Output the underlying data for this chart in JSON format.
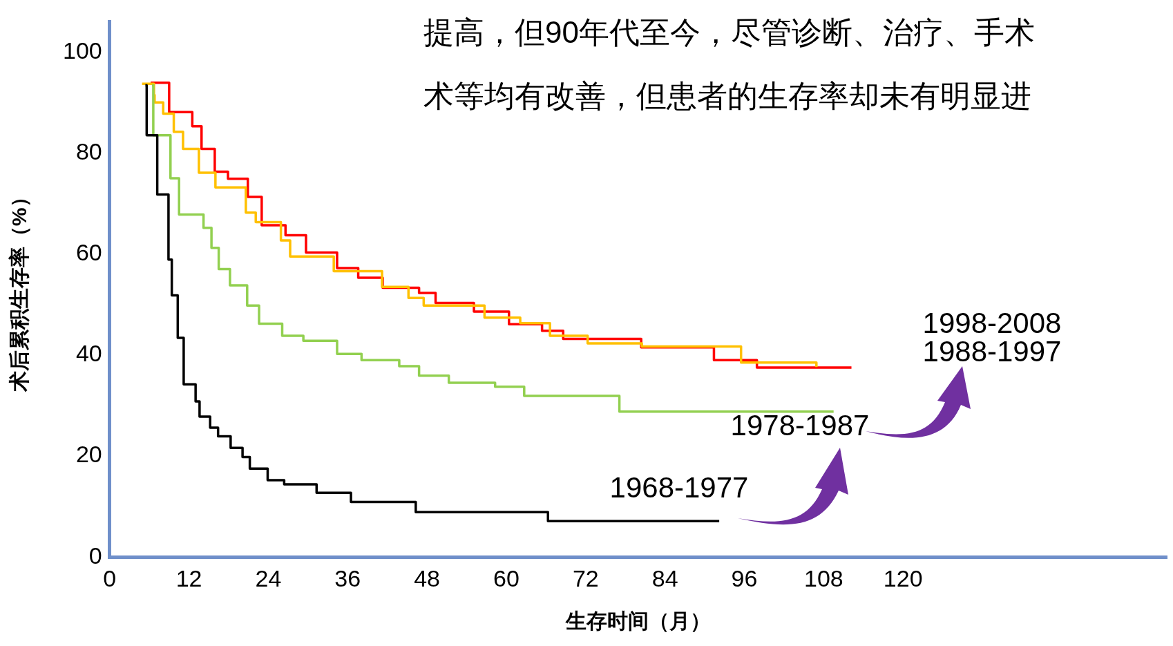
{
  "chart_data": {
    "type": "step",
    "xlabel": "生存时间（月）",
    "ylabel": "术后累积生存率（%）",
    "xlim": [
      0,
      160
    ],
    "xticks": [
      0,
      12,
      24,
      36,
      48,
      60,
      72,
      84,
      96,
      108,
      120
    ],
    "ylim": [
      0,
      106
    ],
    "yticks": [
      0,
      20,
      40,
      60,
      80,
      100
    ],
    "grid": false,
    "legend": false,
    "series": [
      {
        "color": "#000000",
        "x": [
          5.4,
          5.6,
          7.2,
          8.9,
          9.4,
          10.3,
          11.2,
          13,
          13.6,
          15.2,
          16.4,
          18.3,
          20.1,
          21.2,
          23.9,
          26.4,
          31.3,
          36.5,
          46.3,
          66.3,
          92.2
        ],
        "values": [
          93.4,
          83.5,
          71.8,
          58.9,
          51.8,
          43.4,
          34.2,
          30.8,
          27.8,
          25.6,
          23.9,
          21.6,
          19.8,
          17.5,
          15.2,
          14.4,
          12.7,
          10.9,
          8.9,
          7.1,
          7.1
        ]
      },
      {
        "color": "#92d050",
        "x": [
          6.4,
          6.6,
          9.2,
          10.5,
          14.2,
          15.4,
          16.5,
          18.2,
          20.8,
          22.6,
          26.1,
          29.3,
          34.4,
          38.1,
          43.8,
          46.8,
          51.3,
          58.3,
          62.7,
          77.1,
          109.5
        ],
        "values": [
          93.4,
          83.5,
          75,
          67.8,
          65.2,
          61.2,
          57,
          53.8,
          49.8,
          46.2,
          43.8,
          42.8,
          40.2,
          39,
          37.8,
          35.9,
          34.5,
          33.7,
          31.9,
          28.8,
          28.8
        ]
      },
      {
        "color": "#ffc000",
        "x": [
          4.9,
          6.7,
          6.8,
          8.1,
          9.7,
          11.1,
          13.5,
          16,
          20.6,
          22.1,
          25.9,
          27.3,
          33.9,
          41.2,
          45.2,
          47.5,
          56.7,
          62.1,
          66.6,
          72.3,
          80.5,
          95.5,
          106.9
        ],
        "values": [
          93.7,
          91.5,
          90,
          87.8,
          84.2,
          80.8,
          76.1,
          73.2,
          68.2,
          66.3,
          62.7,
          59.5,
          56.6,
          53.5,
          51.3,
          49.8,
          47.4,
          46.3,
          43.8,
          42.3,
          41.7,
          38.5,
          37.6
        ]
      },
      {
        "color": "#ff0000",
        "x": [
          6.2,
          9,
          12.5,
          13.9,
          15.9,
          17.9,
          20.9,
          23,
          26.6,
          29.7,
          34.4,
          37.6,
          41.3,
          46.8,
          49.3,
          55.1,
          60.4,
          65.4,
          68.6,
          80.4,
          91.4,
          97.9,
          112.2
        ],
        "values": [
          93.9,
          88.1,
          85.3,
          80.8,
          76.3,
          74.9,
          71.3,
          65.7,
          63.7,
          60.3,
          57.2,
          55.3,
          53.3,
          52.3,
          50.3,
          48.6,
          46.1,
          44.8,
          43.2,
          41.5,
          39,
          37.5,
          37.5
        ]
      }
    ],
    "annotations": [
      "提高，但90年代至今，尽管诊断、治疗、手术",
      "术等均有改善，但患者的生存率却未有明显进",
      "1968-1977",
      "1978-1987",
      "1998-2008",
      "1988-1997"
    ]
  }
}
